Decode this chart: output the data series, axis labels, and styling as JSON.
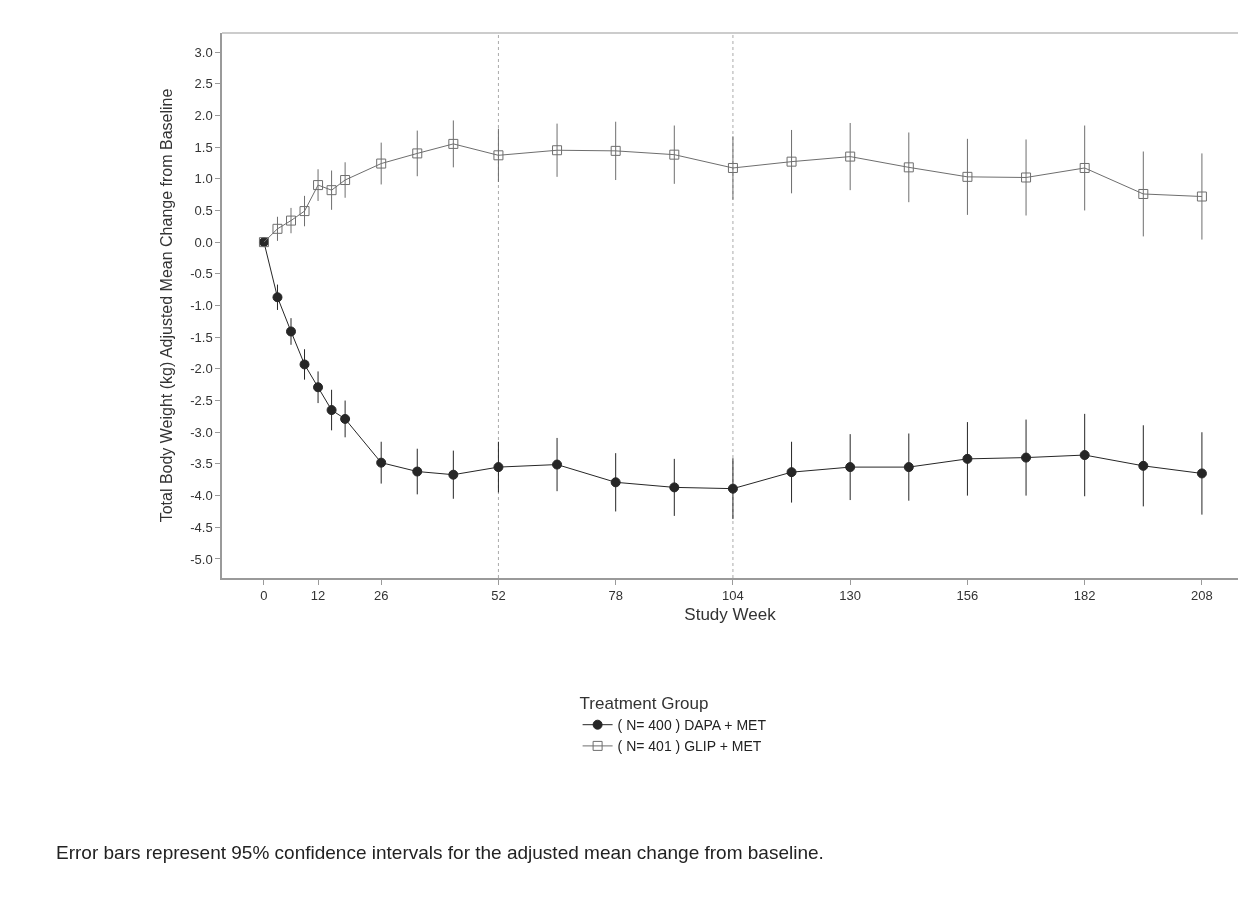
{
  "chart_data": {
    "type": "line",
    "xlabel": "Study Week",
    "ylabel": "Total Body Weight (kg) Adjusted Mean Change from Baseline",
    "legend_title": "Treatment Group",
    "x": [
      0,
      3,
      6,
      9,
      12,
      15,
      18,
      26,
      34,
      42,
      52,
      65,
      78,
      91,
      104,
      117,
      130,
      143,
      156,
      169,
      182,
      195,
      208
    ],
    "series": [
      {
        "name": "( N= 400 ) DAPA + MET",
        "color": "#262626",
        "marker": "circle",
        "values": [
          0,
          -0.87,
          -1.41,
          -1.93,
          -2.29,
          -2.65,
          -2.79,
          -3.48,
          -3.62,
          -3.67,
          -3.55,
          -3.51,
          -3.79,
          -3.87,
          -3.89,
          -3.63,
          -3.55,
          -3.55,
          -3.42,
          -3.4,
          -3.36,
          -3.53,
          -3.65
        ],
        "errors": [
          null,
          0.2,
          0.21,
          0.24,
          0.25,
          0.32,
          0.29,
          0.33,
          0.36,
          0.38,
          0.4,
          0.42,
          0.46,
          0.45,
          0.48,
          0.48,
          0.52,
          0.53,
          0.58,
          0.6,
          0.65,
          0.64,
          0.65
        ]
      },
      {
        "name": "( N= 401 ) GLIP + MET",
        "color": "#6e6e6e",
        "marker": "square",
        "values": [
          0,
          0.21,
          0.34,
          0.49,
          0.9,
          0.82,
          0.98,
          1.24,
          1.4,
          1.55,
          1.37,
          1.45,
          1.44,
          1.38,
          1.17,
          1.27,
          1.35,
          1.18,
          1.03,
          1.02,
          1.17,
          0.76,
          0.72
        ],
        "errors": [
          null,
          0.19,
          0.2,
          0.24,
          0.25,
          0.31,
          0.28,
          0.33,
          0.36,
          0.37,
          0.42,
          0.42,
          0.46,
          0.46,
          0.5,
          0.5,
          0.53,
          0.55,
          0.6,
          0.6,
          0.67,
          0.67,
          0.68
        ]
      }
    ],
    "xlim": [
      -9.3,
      216
    ],
    "xticks": [
      0,
      12,
      26,
      52,
      78,
      104,
      130,
      156,
      182,
      208
    ],
    "ylim": [
      -5.3,
      3.3
    ],
    "yticks": [
      {
        "value": -5,
        "label": "-5.0"
      },
      {
        "value": -4.5,
        "label": "-4.5"
      },
      {
        "value": -4,
        "label": "-4.0"
      },
      {
        "value": -3.5,
        "label": "-3.5"
      },
      {
        "value": -3,
        "label": "-3.0"
      },
      {
        "value": -2.5,
        "label": "-2.5"
      },
      {
        "value": -2,
        "label": "-2.0"
      },
      {
        "value": -1.5,
        "label": "-1.5"
      },
      {
        "value": -1,
        "label": "-1.0"
      },
      {
        "value": -0.5,
        "label": "-0.5"
      },
      {
        "value": 0,
        "label": "0.0"
      },
      {
        "value": 0.5,
        "label": "0.5"
      },
      {
        "value": 1,
        "label": "1.0"
      },
      {
        "value": 1.5,
        "label": "1.5"
      },
      {
        "value": 2,
        "label": "2.0"
      },
      {
        "value": 2.5,
        "label": "2.5"
      },
      {
        "value": 3,
        "label": "3.0"
      }
    ],
    "ref_lines": [
      {
        "axis": "x",
        "value": 52,
        "color": "#aaaaaa",
        "line_style": "dotted"
      },
      {
        "axis": "x",
        "value": 104,
        "color": "#aaaaaa",
        "line_style": "dotted"
      }
    ],
    "grid": false,
    "legend": "bottom",
    "annotations": [
      "Error bars represent 95% confidence intervals for the adjusted mean change from baseline."
    ]
  }
}
